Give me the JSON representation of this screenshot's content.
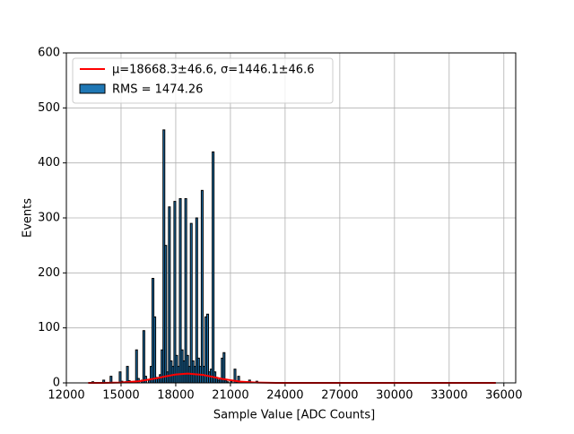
{
  "chart_data": {
    "type": "histogram",
    "xlabel": "Sample Value [ADC Counts]",
    "ylabel": "Events",
    "xlim": [
      12000,
      36650
    ],
    "ylim": [
      0,
      600
    ],
    "xticks": [
      12000,
      15000,
      18000,
      21000,
      24000,
      27000,
      30000,
      33000,
      36000
    ],
    "yticks": [
      0,
      100,
      200,
      300,
      400,
      500,
      600
    ],
    "grid": true,
    "legend": "upper left",
    "bins": [
      13200,
      13300,
      13400,
      13500,
      13600,
      13700,
      13800,
      13900,
      14000,
      14100,
      14200,
      14300,
      14400,
      14500,
      14600,
      14700,
      14800,
      14900,
      15000,
      15100,
      15200,
      15300,
      15400,
      15500,
      15600,
      15700,
      15800,
      15900,
      16000,
      16100,
      16200,
      16300,
      16400,
      16500,
      16600,
      16700,
      16800,
      16900,
      17000,
      17100,
      17200,
      17300,
      17400,
      17500,
      17600,
      17700,
      17800,
      17900,
      18000,
      18100,
      18200,
      18300,
      18400,
      18500,
      18600,
      18700,
      18800,
      18900,
      19000,
      19100,
      19200,
      19300,
      19400,
      19500,
      19600,
      19700,
      19800,
      19900,
      20000,
      20100,
      20200,
      20300,
      20400,
      20500,
      20600,
      20700,
      20800,
      20900,
      21000,
      21100,
      21200,
      21300,
      21400,
      21500,
      21600,
      21700,
      21800,
      21900,
      22000,
      22100,
      22200,
      22300,
      22400,
      22500,
      22600
    ],
    "hist": {
      "name": "RMS = 1474.26",
      "color": "#1f77b4",
      "edgecolor": "#000000",
      "values": [
        0,
        0,
        2,
        0,
        0,
        0,
        0,
        0,
        5,
        0,
        0,
        0,
        12,
        0,
        0,
        0,
        0,
        20,
        3,
        0,
        2,
        30,
        4,
        0,
        0,
        3,
        60,
        8,
        0,
        5,
        95,
        12,
        0,
        5,
        30,
        190,
        120,
        10,
        8,
        15,
        60,
        460,
        250,
        20,
        320,
        40,
        30,
        330,
        50,
        30,
        335,
        60,
        40,
        335,
        50,
        30,
        290,
        40,
        30,
        300,
        45,
        30,
        350,
        30,
        120,
        125,
        20,
        25,
        420,
        20,
        10,
        5,
        8,
        45,
        55,
        5,
        2,
        0,
        3,
        0,
        25,
        2,
        12,
        0,
        0,
        0,
        0,
        0,
        5,
        0,
        0,
        0,
        3,
        0
      ]
    },
    "fit": {
      "name": "μ=18668.3±46.6, σ=1446.1±46.6",
      "color": "#ff0000",
      "x": [
        13200,
        14000,
        15000,
        16000,
        17000,
        17500,
        18000,
        18668,
        19500,
        20000,
        20500,
        21500,
        22500,
        23500,
        24500,
        26000,
        30000,
        35560
      ],
      "values": [
        0.01,
        0.09,
        0.68,
        3.1,
        8.7,
        12.3,
        15.3,
        17,
        14.4,
        11.1,
        7.6,
        2.5,
        0.51,
        0.06,
        0,
        0,
        0,
        0
      ]
    }
  }
}
